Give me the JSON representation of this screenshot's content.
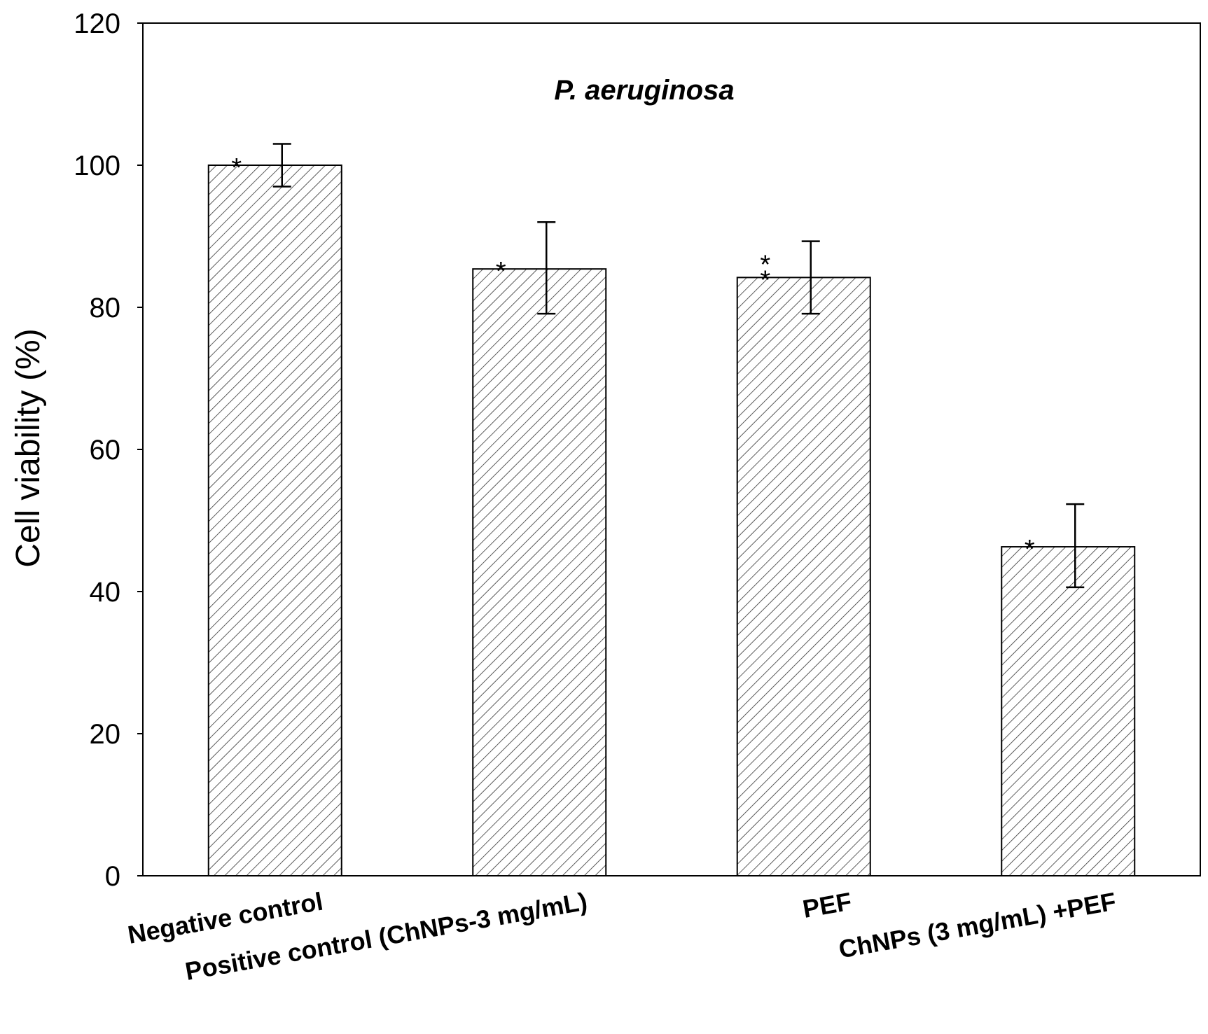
{
  "chart_data": {
    "type": "bar",
    "title": "P. aeruginosa",
    "xlabel": "",
    "ylabel": "Cell viability (%)",
    "ylim": [
      0,
      120
    ],
    "yticks": [
      0,
      20,
      40,
      60,
      80,
      100,
      120
    ],
    "grid": false,
    "legend": "none",
    "categories": [
      "Negative control",
      "Positive control (ChNPs-3 mg/mL)",
      "PEF",
      "ChNPs (3 mg/mL) +PEF"
    ],
    "values": [
      100,
      85.4,
      84.2,
      46.3
    ],
    "error_upper": [
      103,
      92,
      89.3,
      52.3
    ],
    "error_lower": [
      97,
      79.1,
      79.1,
      40.6
    ],
    "significance": [
      "*",
      "*",
      "**",
      "*"
    ],
    "bar_fill": "#ffffff",
    "hatch_color": "#333333"
  }
}
